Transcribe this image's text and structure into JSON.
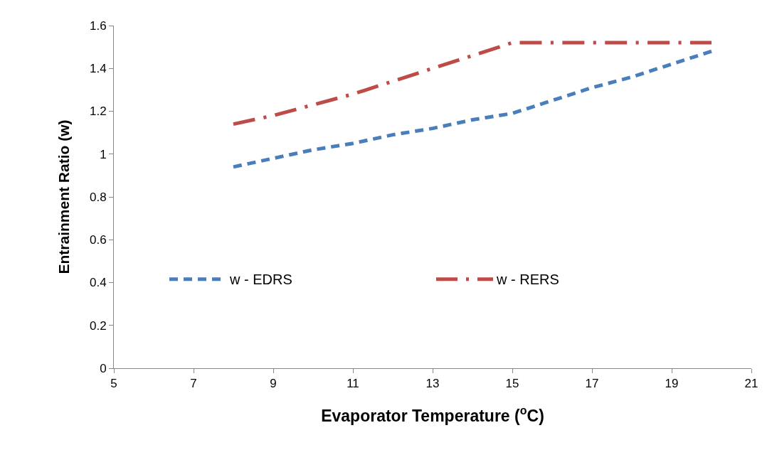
{
  "chart_data": {
    "type": "line",
    "xlabel": "Evaporator Temperature ($^{o}$C)",
    "ylabel": "Entrainment Ratio (w)",
    "x": [
      8,
      9,
      10,
      11,
      12,
      13,
      14,
      15,
      16,
      17,
      18,
      19,
      20
    ],
    "series": [
      {
        "name": "w - EDRS",
        "color": "#4a7ebb",
        "line_style": "dashed",
        "values": [
          0.94,
          0.98,
          1.02,
          1.05,
          1.09,
          1.12,
          1.16,
          1.19,
          1.25,
          1.31,
          1.36,
          1.42,
          1.48
        ]
      },
      {
        "name": "w - RERS",
        "color": "#be4b48",
        "line_style": "dashdot",
        "values": [
          1.14,
          1.18,
          1.23,
          1.28,
          1.34,
          1.4,
          1.46,
          1.52,
          1.52,
          1.52,
          1.52,
          1.52,
          1.52
        ]
      }
    ],
    "xlim": [
      5,
      21
    ],
    "xticks": [
      5,
      7,
      9,
      11,
      13,
      15,
      17,
      19,
      21
    ],
    "ylim": [
      0,
      1.6
    ],
    "yticks": [
      0,
      0.2,
      0.4,
      0.6,
      0.8,
      1,
      1.2,
      1.4,
      1.6
    ],
    "grid": false,
    "legend": "bottom",
    "marker": "none"
  }
}
